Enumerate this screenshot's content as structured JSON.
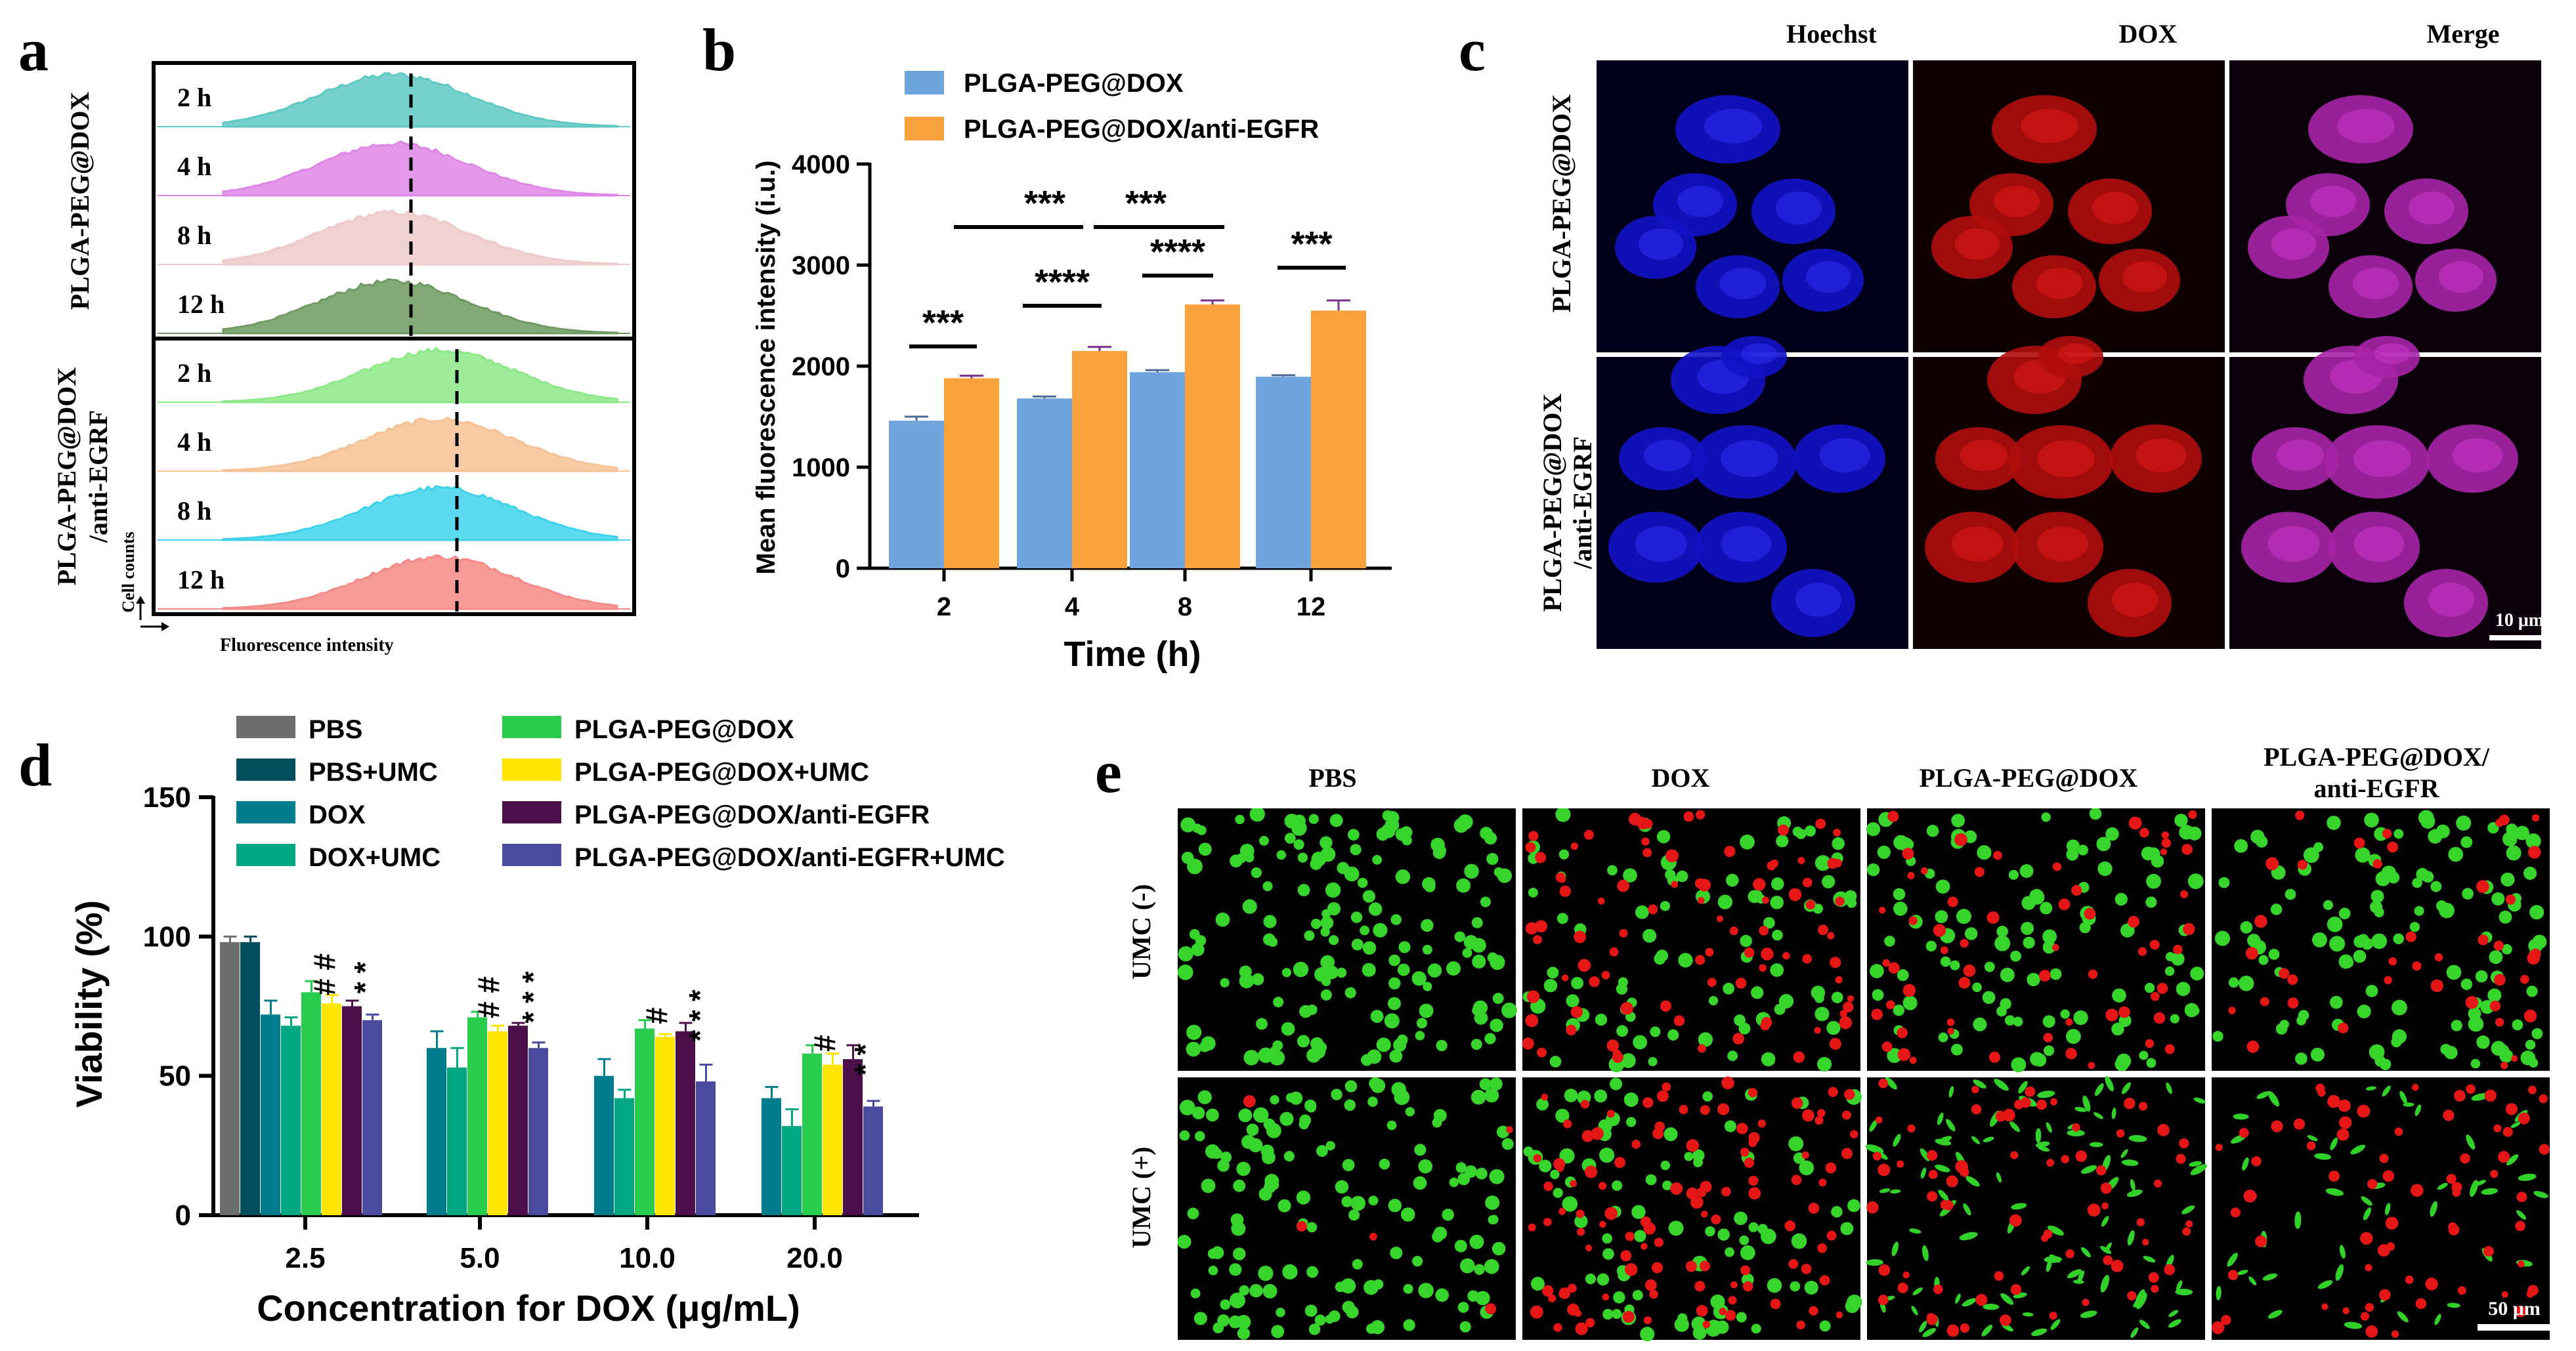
{
  "panels": {
    "a": "a",
    "b": "b",
    "c": "c",
    "d": "d",
    "e": "e"
  },
  "panel_a": {
    "group1_label": "PLGA-PEG@DOX",
    "group2_label_line1": "PLGA-PEG@DOX",
    "group2_label_line2": "/anti-EGRF",
    "y_axis_label": "Cell counts",
    "x_axis_label": "Fluorescence intensity",
    "rows": [
      {
        "label": "2 h",
        "color": "#5ec8c3"
      },
      {
        "label": "4 h",
        "color": "#df86e6"
      },
      {
        "label": "8 h",
        "color": "#efcaca"
      },
      {
        "label": "12 h",
        "color": "#6f9a62"
      },
      {
        "label": "2 h",
        "color": "#8de887"
      },
      {
        "label": "4 h",
        "color": "#f7c295"
      },
      {
        "label": "8 h",
        "color": "#3fd3eb"
      },
      {
        "label": "12 h",
        "color": "#f58a86"
      }
    ]
  },
  "chart_data": [
    {
      "type": "bar",
      "panel": "b",
      "categories": [
        "2",
        "4",
        "8",
        "12"
      ],
      "series": [
        {
          "name": "PLGA-PEG@DOX",
          "color": "#6fa5dc",
          "values": [
            1460,
            1680,
            1940,
            1895
          ],
          "errors": [
            40,
            20,
            20,
            15
          ]
        },
        {
          "name": "PLGA-PEG@DOX/anti-EGFR",
          "color": "#f9a13d",
          "values": [
            1880,
            2150,
            2610,
            2550
          ],
          "errors": [
            25,
            40,
            40,
            100
          ]
        }
      ],
      "xlabel": "Time (h)",
      "ylabel": "Mean fluorescence intensity (i.u.)",
      "ylim": [
        0,
        4000
      ],
      "yticks": [
        "0",
        "1000",
        "2000",
        "3000",
        "4000"
      ],
      "significance": [
        "***",
        "****",
        "****",
        "***",
        "***",
        "***"
      ],
      "legend": "top-left"
    },
    {
      "type": "bar",
      "panel": "d",
      "categories": [
        "2.5",
        "5.0",
        "10.0",
        "20.0"
      ],
      "series": [
        {
          "name": "PBS",
          "color": "#6d6d6d",
          "values": [
            98,
            null,
            null,
            null
          ],
          "errors": [
            2,
            0,
            0,
            0
          ]
        },
        {
          "name": "PBS+UMC",
          "color": "#004d5c",
          "values": [
            98,
            null,
            null,
            null
          ],
          "errors": [
            2,
            0,
            0,
            0
          ]
        },
        {
          "name": "DOX",
          "color": "#007c8c",
          "values": [
            72,
            60,
            50,
            42
          ],
          "errors": [
            5,
            6,
            6,
            4
          ]
        },
        {
          "name": "DOX+UMC",
          "color": "#00a783",
          "values": [
            68,
            53,
            42,
            32
          ],
          "errors": [
            3,
            7,
            3,
            6
          ]
        },
        {
          "name": "PLGA-PEG@DOX",
          "color": "#29cc4c",
          "values": [
            80,
            71,
            67,
            58
          ],
          "errors": [
            4,
            2,
            3,
            3
          ]
        },
        {
          "name": "PLGA-PEG@DOX+UMC",
          "color": "#ffe600",
          "values": [
            76,
            66,
            64,
            54
          ],
          "errors": [
            3,
            2,
            1,
            4
          ]
        },
        {
          "name": "PLGA-PEG@DOX/anti-EGFR",
          "color": "#4d0f4a",
          "values": [
            75,
            68,
            66,
            56
          ],
          "errors": [
            2,
            1,
            3,
            5
          ]
        },
        {
          "name": "PLGA-PEG@DOX/anti-EGFR+UMC",
          "color": "#4a4a9e",
          "values": [
            70,
            60,
            48,
            39
          ],
          "errors": [
            2,
            2,
            6,
            2
          ]
        }
      ],
      "xlabel": "Concentration for DOX (μg/mL)",
      "ylabel": "Viability (%)",
      "ylim": [
        0,
        150
      ],
      "yticks": [
        "0",
        "50",
        "100",
        "150"
      ],
      "annotations": [
        "# #",
        "* *",
        "# #",
        "* * *",
        "#",
        "* * *",
        "#",
        "* *"
      ],
      "legend": "top"
    }
  ],
  "panel_c": {
    "columns": [
      "Hoechst",
      "DOX",
      "Merge"
    ],
    "rows": [
      "PLGA-PEG@DOX",
      "PLGA-PEG@DOX/anti-EGRF"
    ],
    "scale_bar": "10 μm"
  },
  "panel_e": {
    "columns": [
      "PBS",
      "DOX",
      "PLGA-PEG@DOX",
      "PLGA-PEG@DOX/anti-EGFR"
    ],
    "rows": [
      "UMC (-)",
      "UMC (+)"
    ],
    "scale_bar": "50 μm"
  }
}
